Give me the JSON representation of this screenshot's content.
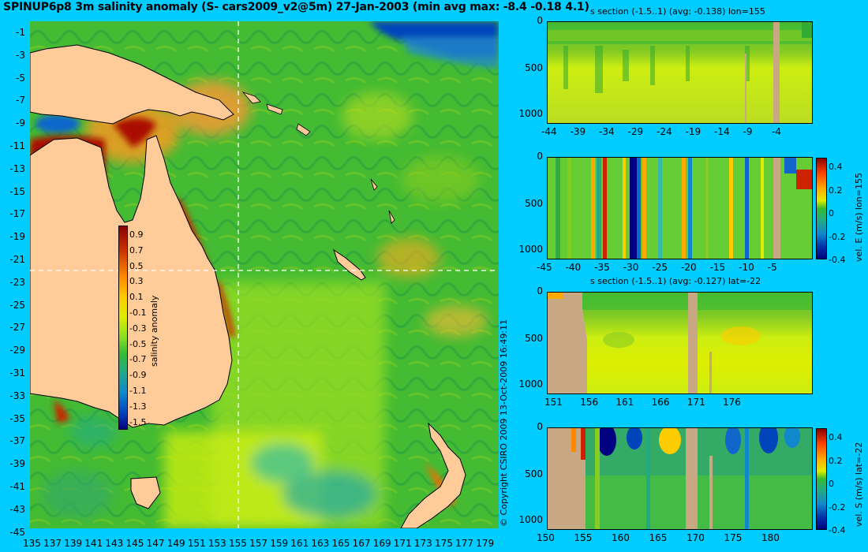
{
  "title": "SPINUP6p8 3m salinity anomaly (S- cars2009_v2@5m) 27-Jan-2003 (min avg max: -8.4 -0.18 4.1)",
  "copyright": "© Copyright CSIRO 2009   13-Oct-2009 16:49:11",
  "colors": {
    "background": "#00ccff",
    "land": "#ffcc99",
    "section_land": "#c8a882",
    "ocean": "#44bb33",
    "warm": "#ffaa22",
    "hot": "#aa1100",
    "cool": "#22aa88",
    "cold": "#0033aa"
  },
  "map": {
    "lon_ticks": [
      "135",
      "137",
      "139",
      "141",
      "143",
      "145",
      "147",
      "149",
      "151",
      "153",
      "155",
      "157",
      "159",
      "161",
      "163",
      "165",
      "167",
      "169",
      "171",
      "173",
      "175",
      "177",
      "179"
    ],
    "lat_ticks": [
      "-1",
      "-3",
      "-5",
      "-7",
      "-9",
      "-11",
      "-13",
      "-15",
      "-17",
      "-19",
      "-21",
      "-23",
      "-25",
      "-27",
      "-29",
      "-31",
      "-33",
      "-35",
      "-37",
      "-39",
      "-41",
      "-43",
      "-45"
    ],
    "colorbar": {
      "label": "salinity anomaly",
      "ticks": [
        "0.9",
        "0.7",
        "0.5",
        "0.3",
        "0.1",
        "-0.1",
        "-0.3",
        "-0.5",
        "-0.7",
        "-0.9",
        "-1.1",
        "-1.3",
        "-1.5"
      ]
    }
  },
  "sections": [
    {
      "name": "s-section-lon155",
      "title": "s section (-1.5..1) (avg: -0.138) lon=155",
      "x_ticks": [
        "-44",
        "-39",
        "-34",
        "-29",
        "-24",
        "-19",
        "-14",
        "-9",
        "-4"
      ],
      "y_ticks": [
        "0",
        "500",
        "1000"
      ],
      "colorbar": null
    },
    {
      "name": "vel-e-section-lon155",
      "title": "",
      "x_ticks": [
        "-45",
        "-40",
        "-35",
        "-30",
        "-25",
        "-20",
        "-15",
        "-10",
        "-5"
      ],
      "y_ticks": [
        "0",
        "500",
        "1000"
      ],
      "colorbar": {
        "label": "vel. E (m/s) lon=155",
        "ticks": [
          "0.4",
          "0.2",
          "0",
          "-0.2",
          "-0.4"
        ]
      }
    },
    {
      "name": "s-section-lat-22",
      "title": "s section (-1.5..1) (avg: -0.127) lat=-22",
      "x_ticks": [
        "151",
        "156",
        "161",
        "166",
        "171",
        "176"
      ],
      "y_ticks": [
        "0",
        "500",
        "1000"
      ],
      "colorbar": null
    },
    {
      "name": "vel-s-section-lat-22",
      "title": "",
      "x_ticks": [
        "150",
        "155",
        "160",
        "165",
        "170",
        "175",
        "180"
      ],
      "y_ticks": [
        "0",
        "500",
        "1000"
      ],
      "colorbar": {
        "label": "vel. S (m/s) lat=-22",
        "ticks": [
          "0.4",
          "0.2",
          "0",
          "-0.2",
          "-0.4"
        ]
      }
    }
  ]
}
